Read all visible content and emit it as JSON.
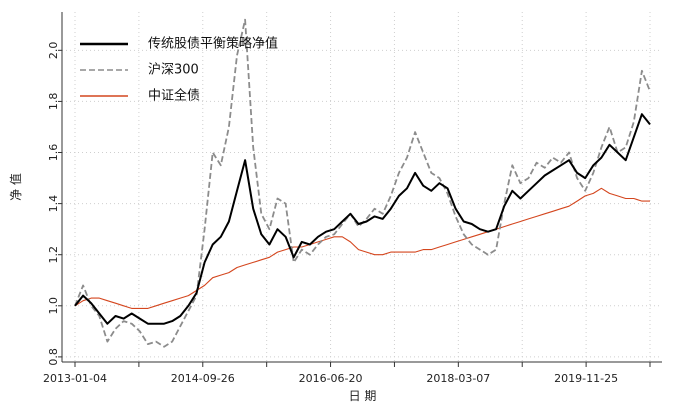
{
  "chart_data": {
    "type": "line",
    "xlabel": "日 期",
    "ylabel": "净 值",
    "x_tick_labels": [
      "2013-01-04",
      "2014-09-26",
      "2016-06-20",
      "2018-03-07",
      "2019-11-25"
    ],
    "ylim": [
      0.78,
      2.15
    ],
    "y_ticks": [
      0.8,
      1.0,
      1.2,
      1.4,
      1.6,
      1.8,
      2.0
    ],
    "grid": true,
    "legend_position": "top-left",
    "series": [
      {
        "name": "传统股债平衡策略净值",
        "color": "#000000",
        "style": "solid",
        "x": [
          "2013-01-04",
          "2013-02-15",
          "2013-03-29",
          "2013-05-10",
          "2013-06-21",
          "2013-08-02",
          "2013-09-13",
          "2013-10-25",
          "2013-12-06",
          "2014-01-17",
          "2014-02-28",
          "2014-04-11",
          "2014-05-23",
          "2014-07-04",
          "2014-08-15",
          "2014-09-26",
          "2014-11-07",
          "2014-12-19",
          "2015-01-30",
          "2015-03-13",
          "2015-04-24",
          "2015-06-05",
          "2015-07-17",
          "2015-08-28",
          "2015-10-09",
          "2015-11-20",
          "2016-01-01",
          "2016-02-12",
          "2016-03-25",
          "2016-05-06",
          "2016-06-17",
          "2016-07-29",
          "2016-09-09",
          "2016-10-21",
          "2016-12-02",
          "2017-01-13",
          "2017-02-24",
          "2017-04-07",
          "2017-05-19",
          "2017-06-30",
          "2017-08-11",
          "2017-09-22",
          "2017-11-03",
          "2017-12-15",
          "2018-01-26",
          "2018-03-09",
          "2018-04-20",
          "2018-06-01",
          "2018-07-13",
          "2018-08-24",
          "2018-10-05",
          "2018-11-16",
          "2018-12-28",
          "2019-02-08",
          "2019-03-22",
          "2019-05-03",
          "2019-06-14",
          "2019-07-26",
          "2019-09-06",
          "2019-10-18",
          "2019-11-29",
          "2020-01-10",
          "2020-02-21",
          "2020-04-03",
          "2020-05-15",
          "2020-06-26",
          "2020-08-07",
          "2020-09-18",
          "2020-10-30",
          "2020-12-11",
          "2021-01-22",
          "2021-03-05"
        ],
        "y": [
          1.0,
          1.04,
          1.01,
          0.97,
          0.93,
          0.96,
          0.95,
          0.97,
          0.95,
          0.93,
          0.93,
          0.93,
          0.94,
          0.96,
          1.0,
          1.05,
          1.17,
          1.24,
          1.27,
          1.33,
          1.45,
          1.57,
          1.38,
          1.28,
          1.24,
          1.3,
          1.27,
          1.19,
          1.25,
          1.24,
          1.27,
          1.29,
          1.3,
          1.33,
          1.36,
          1.32,
          1.33,
          1.35,
          1.34,
          1.38,
          1.43,
          1.46,
          1.52,
          1.47,
          1.45,
          1.48,
          1.46,
          1.38,
          1.33,
          1.32,
          1.3,
          1.29,
          1.3,
          1.39,
          1.45,
          1.42,
          1.45,
          1.48,
          1.51,
          1.53,
          1.55,
          1.57,
          1.52,
          1.5,
          1.55,
          1.58,
          1.63,
          1.6,
          1.57,
          1.66,
          1.75,
          1.71
        ]
      },
      {
        "name": "沪深300",
        "color": "#8c8c8c",
        "style": "dashed",
        "x": [
          "2013-01-04",
          "2013-02-15",
          "2013-03-29",
          "2013-05-10",
          "2013-06-21",
          "2013-08-02",
          "2013-09-13",
          "2013-10-25",
          "2013-12-06",
          "2014-01-17",
          "2014-02-28",
          "2014-04-11",
          "2014-05-23",
          "2014-07-04",
          "2014-08-15",
          "2014-09-26",
          "2014-11-07",
          "2014-12-19",
          "2015-01-30",
          "2015-03-13",
          "2015-04-24",
          "2015-06-05",
          "2015-07-17",
          "2015-08-28",
          "2015-10-09",
          "2015-11-20",
          "2016-01-01",
          "2016-02-12",
          "2016-03-25",
          "2016-05-06",
          "2016-06-17",
          "2016-07-29",
          "2016-09-09",
          "2016-10-21",
          "2016-12-02",
          "2017-01-13",
          "2017-02-24",
          "2017-04-07",
          "2017-05-19",
          "2017-06-30",
          "2017-08-11",
          "2017-09-22",
          "2017-11-03",
          "2017-12-15",
          "2018-01-26",
          "2018-03-09",
          "2018-04-20",
          "2018-06-01",
          "2018-07-13",
          "2018-08-24",
          "2018-10-05",
          "2018-11-16",
          "2018-12-28",
          "2019-02-08",
          "2019-03-22",
          "2019-05-03",
          "2019-06-14",
          "2019-07-26",
          "2019-09-06",
          "2019-10-18",
          "2019-11-29",
          "2020-01-10",
          "2020-02-21",
          "2020-04-03",
          "2020-05-15",
          "2020-06-26",
          "2020-08-07",
          "2020-09-18",
          "2020-10-30",
          "2020-12-11",
          "2021-01-22",
          "2021-03-05"
        ],
        "y": [
          1.0,
          1.08,
          1.0,
          0.96,
          0.86,
          0.91,
          0.94,
          0.93,
          0.9,
          0.85,
          0.86,
          0.84,
          0.86,
          0.92,
          0.98,
          1.04,
          1.3,
          1.6,
          1.55,
          1.7,
          1.98,
          2.12,
          1.62,
          1.36,
          1.3,
          1.42,
          1.4,
          1.17,
          1.22,
          1.2,
          1.24,
          1.27,
          1.28,
          1.32,
          1.36,
          1.31,
          1.34,
          1.38,
          1.36,
          1.43,
          1.52,
          1.58,
          1.68,
          1.6,
          1.52,
          1.5,
          1.44,
          1.35,
          1.28,
          1.24,
          1.22,
          1.2,
          1.22,
          1.4,
          1.55,
          1.48,
          1.5,
          1.56,
          1.54,
          1.58,
          1.56,
          1.6,
          1.5,
          1.45,
          1.52,
          1.62,
          1.7,
          1.6,
          1.62,
          1.72,
          1.92,
          1.84
        ]
      },
      {
        "name": "中证全债",
        "color": "#d4461e",
        "style": "solid",
        "x": [
          "2013-01-04",
          "2013-02-15",
          "2013-03-29",
          "2013-05-10",
          "2013-06-21",
          "2013-08-02",
          "2013-09-13",
          "2013-10-25",
          "2013-12-06",
          "2014-01-17",
          "2014-02-28",
          "2014-04-11",
          "2014-05-23",
          "2014-07-04",
          "2014-08-15",
          "2014-09-26",
          "2014-11-07",
          "2014-12-19",
          "2015-01-30",
          "2015-03-13",
          "2015-04-24",
          "2015-06-05",
          "2015-07-17",
          "2015-08-28",
          "2015-10-09",
          "2015-11-20",
          "2016-01-01",
          "2016-02-12",
          "2016-03-25",
          "2016-05-06",
          "2016-06-17",
          "2016-07-29",
          "2016-09-09",
          "2016-10-21",
          "2016-12-02",
          "2017-01-13",
          "2017-02-24",
          "2017-04-07",
          "2017-05-19",
          "2017-06-30",
          "2017-08-11",
          "2017-09-22",
          "2017-11-03",
          "2017-12-15",
          "2018-01-26",
          "2018-03-09",
          "2018-04-20",
          "2018-06-01",
          "2018-07-13",
          "2018-08-24",
          "2018-10-05",
          "2018-11-16",
          "2018-12-28",
          "2019-02-08",
          "2019-03-22",
          "2019-05-03",
          "2019-06-14",
          "2019-07-26",
          "2019-09-06",
          "2019-10-18",
          "2019-11-29",
          "2020-01-10",
          "2020-02-21",
          "2020-04-03",
          "2020-05-15",
          "2020-06-26",
          "2020-08-07",
          "2020-09-18",
          "2020-10-30",
          "2020-12-11",
          "2021-01-22",
          "2021-03-05"
        ],
        "y": [
          1.0,
          1.02,
          1.03,
          1.03,
          1.02,
          1.01,
          1.0,
          0.99,
          0.99,
          0.99,
          1.0,
          1.01,
          1.02,
          1.03,
          1.04,
          1.06,
          1.08,
          1.11,
          1.12,
          1.13,
          1.15,
          1.16,
          1.17,
          1.18,
          1.19,
          1.21,
          1.22,
          1.23,
          1.23,
          1.24,
          1.25,
          1.26,
          1.27,
          1.27,
          1.25,
          1.22,
          1.21,
          1.2,
          1.2,
          1.21,
          1.21,
          1.21,
          1.21,
          1.22,
          1.22,
          1.23,
          1.24,
          1.25,
          1.26,
          1.27,
          1.28,
          1.29,
          1.3,
          1.31,
          1.32,
          1.33,
          1.34,
          1.35,
          1.36,
          1.37,
          1.38,
          1.39,
          1.41,
          1.43,
          1.44,
          1.46,
          1.44,
          1.43,
          1.42,
          1.42,
          1.41,
          1.41
        ]
      }
    ]
  }
}
